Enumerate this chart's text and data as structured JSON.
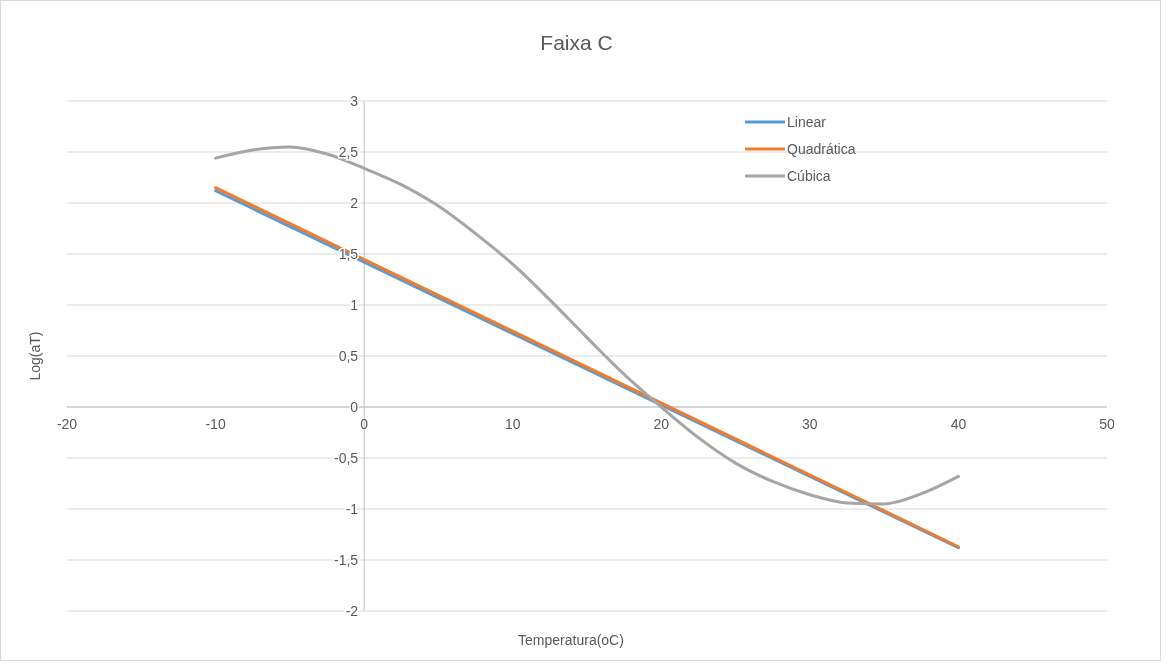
{
  "chart_data": {
    "type": "line",
    "title": "Faixa C",
    "xlabel": "Temperatura(oC)",
    "ylabel": "Log(aT)",
    "xlim": [
      -20,
      50
    ],
    "xticks": [
      -20,
      -10,
      0,
      10,
      20,
      30,
      40,
      50
    ],
    "ylim": [
      -2,
      3
    ],
    "yticks": [
      {
        "value": -2,
        "label": "-2"
      },
      {
        "value": -1.5,
        "label": "-1,5"
      },
      {
        "value": -1,
        "label": "-1"
      },
      {
        "value": -0.5,
        "label": "-0,5"
      },
      {
        "value": 0,
        "label": "0"
      },
      {
        "value": 0.5,
        "label": "0,5"
      },
      {
        "value": 1,
        "label": "1"
      },
      {
        "value": 1.5,
        "label": "1,5"
      },
      {
        "value": 2,
        "label": "2"
      },
      {
        "value": 2.5,
        "label": "2,5"
      },
      {
        "value": 3,
        "label": "3"
      }
    ],
    "grid": "y",
    "legend": "top right",
    "marker": "none",
    "line_style": "solid",
    "series": [
      {
        "name": "Linear",
        "color": "#5b9bd5",
        "x": [
          -10,
          40
        ],
        "values": [
          2.12,
          -1.38
        ]
      },
      {
        "name": "Quadrática",
        "color": "#ed7d31",
        "x": [
          -10,
          40
        ],
        "values": [
          2.15,
          -1.37
        ]
      },
      {
        "name": "Cúbica",
        "color": "#a5a5a5",
        "x": [
          -10,
          -7.5,
          -5,
          -2.5,
          0,
          2.5,
          5,
          7.5,
          10,
          12.5,
          15,
          17.5,
          20,
          22.5,
          25,
          27.5,
          30,
          32.5,
          35,
          37.5,
          40
        ],
        "values": [
          2.44,
          2.52,
          2.55,
          2.48,
          2.34,
          2.18,
          1.97,
          1.7,
          1.4,
          1.05,
          0.68,
          0.32,
          0,
          -0.3,
          -0.55,
          -0.73,
          -0.86,
          -0.94,
          -0.95,
          -0.85,
          -0.68
        ]
      }
    ]
  }
}
